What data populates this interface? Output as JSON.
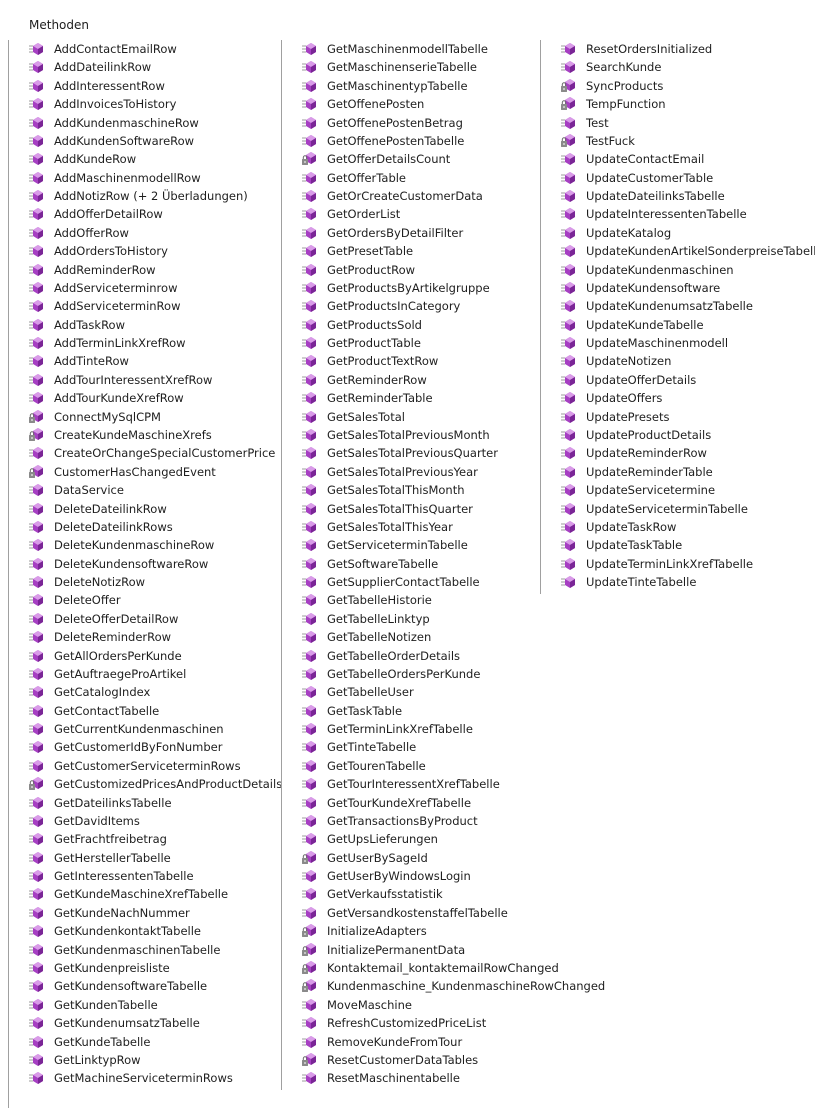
{
  "header": "Methoden",
  "columns": [
    {
      "items": [
        {
          "label": "AddContactEmailRow",
          "icon": "method-icon"
        },
        {
          "label": "AddDateilinkRow",
          "icon": "method-icon"
        },
        {
          "label": "AddInteressentRow",
          "icon": "method-icon"
        },
        {
          "label": "AddInvoicesToHistory",
          "icon": "method-icon"
        },
        {
          "label": "AddKundenmaschineRow",
          "icon": "method-icon"
        },
        {
          "label": "AddKundenSoftwareRow",
          "icon": "method-icon"
        },
        {
          "label": "AddKundeRow",
          "icon": "method-icon"
        },
        {
          "label": "AddMaschinenmodellRow",
          "icon": "method-icon"
        },
        {
          "label": "AddNotizRow (+ 2 Überladungen)",
          "icon": "method-icon"
        },
        {
          "label": "AddOfferDetailRow",
          "icon": "method-icon"
        },
        {
          "label": "AddOfferRow",
          "icon": "method-icon"
        },
        {
          "label": "AddOrdersToHistory",
          "icon": "method-icon"
        },
        {
          "label": "AddReminderRow",
          "icon": "method-icon"
        },
        {
          "label": "AddServiceterminrow",
          "icon": "method-icon"
        },
        {
          "label": "AddServiceterminRow",
          "icon": "method-icon"
        },
        {
          "label": "AddTaskRow",
          "icon": "method-icon"
        },
        {
          "label": "AddTerminLinkXrefRow",
          "icon": "method-icon"
        },
        {
          "label": "AddTinteRow",
          "icon": "method-icon"
        },
        {
          "label": "AddTourInteressentXrefRow",
          "icon": "method-icon"
        },
        {
          "label": "AddTourKundeXrefRow",
          "icon": "method-icon"
        },
        {
          "label": "ConnectMySqlCPM",
          "icon": "private-method-icon"
        },
        {
          "label": "CreateKundeMaschineXrefs",
          "icon": "private-method-icon"
        },
        {
          "label": "CreateOrChangeSpecialCustomerPrice",
          "icon": "method-icon"
        },
        {
          "label": "CustomerHasChangedEvent",
          "icon": "private-method-icon"
        },
        {
          "label": "DataService",
          "icon": "method-icon"
        },
        {
          "label": "DeleteDateilinkRow",
          "icon": "method-icon"
        },
        {
          "label": "DeleteDateilinkRows",
          "icon": "method-icon"
        },
        {
          "label": "DeleteKundenmaschineRow",
          "icon": "method-icon"
        },
        {
          "label": "DeleteKundensoftwareRow",
          "icon": "method-icon"
        },
        {
          "label": "DeleteNotizRow",
          "icon": "method-icon"
        },
        {
          "label": "DeleteOffer",
          "icon": "method-icon"
        },
        {
          "label": "DeleteOfferDetailRow",
          "icon": "method-icon"
        },
        {
          "label": "DeleteReminderRow",
          "icon": "method-icon"
        },
        {
          "label": "GetAllOrdersPerKunde",
          "icon": "method-icon"
        },
        {
          "label": "GetAuftraegeProArtikel",
          "icon": "method-icon"
        },
        {
          "label": "GetCatalogIndex",
          "icon": "method-icon"
        },
        {
          "label": "GetContactTabelle",
          "icon": "method-icon"
        },
        {
          "label": "GetCurrentKundenmaschinen",
          "icon": "method-icon"
        },
        {
          "label": "GetCustomerIdByFonNumber",
          "icon": "method-icon"
        },
        {
          "label": "GetCustomerServiceterminRows",
          "icon": "method-icon"
        },
        {
          "label": "GetCustomizedPricesAndProductDetails",
          "icon": "private-method-icon"
        },
        {
          "label": "GetDateilinksTabelle",
          "icon": "method-icon"
        },
        {
          "label": "GetDavidItems",
          "icon": "method-icon"
        },
        {
          "label": "GetFrachtfreibetrag",
          "icon": "method-icon"
        },
        {
          "label": "GetHerstellerTabelle",
          "icon": "method-icon"
        },
        {
          "label": "GetInteressentenTabelle",
          "icon": "method-icon"
        },
        {
          "label": "GetKundeMaschineXrefTabelle",
          "icon": "method-icon"
        },
        {
          "label": "GetKundeNachNummer",
          "icon": "method-icon"
        },
        {
          "label": "GetKundenkontaktTabelle",
          "icon": "method-icon"
        },
        {
          "label": "GetKundenmaschinenTabelle",
          "icon": "method-icon"
        },
        {
          "label": "GetKundenpreisliste",
          "icon": "method-icon"
        },
        {
          "label": "GetKundensoftwareTabelle",
          "icon": "method-icon"
        },
        {
          "label": "GetKundenTabelle",
          "icon": "method-icon"
        },
        {
          "label": "GetKundenumsatzTabelle",
          "icon": "method-icon"
        },
        {
          "label": "GetKundeTabelle",
          "icon": "method-icon"
        },
        {
          "label": "GetLinktypRow",
          "icon": "method-icon"
        },
        {
          "label": "GetMachineServiceterminRows",
          "icon": "method-icon"
        }
      ]
    },
    {
      "items": [
        {
          "label": "GetMaschinenmodellTabelle",
          "icon": "method-icon"
        },
        {
          "label": "GetMaschinenserieTabelle",
          "icon": "method-icon"
        },
        {
          "label": "GetMaschinentypTabelle",
          "icon": "method-icon"
        },
        {
          "label": "GetOffenePosten",
          "icon": "method-icon"
        },
        {
          "label": "GetOffenePostenBetrag",
          "icon": "method-icon"
        },
        {
          "label": "GetOffenePostenTabelle",
          "icon": "method-icon"
        },
        {
          "label": "GetOfferDetailsCount",
          "icon": "private-method-icon"
        },
        {
          "label": "GetOfferTable",
          "icon": "method-icon"
        },
        {
          "label": "GetOrCreateCustomerData",
          "icon": "method-icon"
        },
        {
          "label": "GetOrderList",
          "icon": "method-icon"
        },
        {
          "label": "GetOrdersByDetailFilter",
          "icon": "method-icon"
        },
        {
          "label": "GetPresetTable",
          "icon": "method-icon"
        },
        {
          "label": "GetProductRow",
          "icon": "method-icon"
        },
        {
          "label": "GetProductsByArtikelgruppe",
          "icon": "method-icon"
        },
        {
          "label": "GetProductsInCategory",
          "icon": "method-icon"
        },
        {
          "label": "GetProductsSold",
          "icon": "method-icon"
        },
        {
          "label": "GetProductTable",
          "icon": "method-icon"
        },
        {
          "label": "GetProductTextRow",
          "icon": "method-icon"
        },
        {
          "label": "GetReminderRow",
          "icon": "method-icon"
        },
        {
          "label": "GetReminderTable",
          "icon": "method-icon"
        },
        {
          "label": "GetSalesTotal",
          "icon": "method-icon"
        },
        {
          "label": "GetSalesTotalPreviousMonth",
          "icon": "method-icon"
        },
        {
          "label": "GetSalesTotalPreviousQuarter",
          "icon": "method-icon"
        },
        {
          "label": "GetSalesTotalPreviousYear",
          "icon": "method-icon"
        },
        {
          "label": "GetSalesTotalThisMonth",
          "icon": "method-icon"
        },
        {
          "label": "GetSalesTotalThisQuarter",
          "icon": "method-icon"
        },
        {
          "label": "GetSalesTotalThisYear",
          "icon": "method-icon"
        },
        {
          "label": "GetServiceterminTabelle",
          "icon": "method-icon"
        },
        {
          "label": "GetSoftwareTabelle",
          "icon": "method-icon"
        },
        {
          "label": "GetSupplierContactTabelle",
          "icon": "method-icon"
        },
        {
          "label": "GetTabelleHistorie",
          "icon": "method-icon"
        },
        {
          "label": "GetTabelleLinktyp",
          "icon": "method-icon"
        },
        {
          "label": "GetTabelleNotizen",
          "icon": "method-icon"
        },
        {
          "label": "GetTabelleOrderDetails",
          "icon": "method-icon"
        },
        {
          "label": "GetTabelleOrdersPerKunde",
          "icon": "method-icon"
        },
        {
          "label": "GetTabelleUser",
          "icon": "method-icon"
        },
        {
          "label": "GetTaskTable",
          "icon": "method-icon"
        },
        {
          "label": "GetTerminLinkXrefTabelle",
          "icon": "method-icon"
        },
        {
          "label": "GetTinteTabelle",
          "icon": "method-icon"
        },
        {
          "label": "GetTourenTabelle",
          "icon": "method-icon"
        },
        {
          "label": "GetTourInteressentXrefTabelle",
          "icon": "method-icon"
        },
        {
          "label": "GetTourKundeXrefTabelle",
          "icon": "method-icon"
        },
        {
          "label": "GetTransactionsByProduct",
          "icon": "method-icon"
        },
        {
          "label": "GetUpsLieferungen",
          "icon": "method-icon"
        },
        {
          "label": "GetUserBySageId",
          "icon": "private-method-icon"
        },
        {
          "label": "GetUserByWindowsLogin",
          "icon": "method-icon"
        },
        {
          "label": "GetVerkaufsstatistik",
          "icon": "method-icon"
        },
        {
          "label": "GetVersandkostenstaffelTabelle",
          "icon": "method-icon"
        },
        {
          "label": "InitializeAdapters",
          "icon": "private-method-icon"
        },
        {
          "label": "InitializePermanentData",
          "icon": "private-method-icon"
        },
        {
          "label": "Kontaktemail_kontaktemailRowChanged",
          "icon": "private-method-icon"
        },
        {
          "label": "Kundenmaschine_KundenmaschineRowChanged",
          "icon": "private-method-icon"
        },
        {
          "label": "MoveMaschine",
          "icon": "method-icon"
        },
        {
          "label": "RefreshCustomizedPriceList",
          "icon": "method-icon"
        },
        {
          "label": "RemoveKundeFromTour",
          "icon": "method-icon"
        },
        {
          "label": "ResetCustomerDataTables",
          "icon": "private-method-icon"
        },
        {
          "label": "ResetMaschinentabelle",
          "icon": "method-icon"
        }
      ]
    },
    {
      "items": [
        {
          "label": "ResetOrdersInitialized",
          "icon": "method-icon"
        },
        {
          "label": "SearchKunde",
          "icon": "method-icon"
        },
        {
          "label": "SyncProducts",
          "icon": "private-method-icon"
        },
        {
          "label": "TempFunction",
          "icon": "private-method-icon"
        },
        {
          "label": "Test",
          "icon": "method-icon"
        },
        {
          "label": "TestFuck",
          "icon": "private-method-icon"
        },
        {
          "label": "UpdateContactEmail",
          "icon": "method-icon"
        },
        {
          "label": "UpdateCustomerTable",
          "icon": "method-icon"
        },
        {
          "label": "UpdateDateilinksTabelle",
          "icon": "method-icon"
        },
        {
          "label": "UpdateInteressentenTabelle",
          "icon": "method-icon"
        },
        {
          "label": "UpdateKatalog",
          "icon": "method-icon"
        },
        {
          "label": "UpdateKundenArtikelSonderpreiseTabelle",
          "icon": "method-icon"
        },
        {
          "label": "UpdateKundenmaschinen",
          "icon": "method-icon"
        },
        {
          "label": "UpdateKundensoftware",
          "icon": "method-icon"
        },
        {
          "label": "UpdateKundenumsatzTabelle",
          "icon": "method-icon"
        },
        {
          "label": "UpdateKundeTabelle",
          "icon": "method-icon"
        },
        {
          "label": "UpdateMaschinenmodell",
          "icon": "method-icon"
        },
        {
          "label": "UpdateNotizen",
          "icon": "method-icon"
        },
        {
          "label": "UpdateOfferDetails",
          "icon": "method-icon"
        },
        {
          "label": "UpdateOffers",
          "icon": "method-icon"
        },
        {
          "label": "UpdatePresets",
          "icon": "method-icon"
        },
        {
          "label": "UpdateProductDetails",
          "icon": "method-icon"
        },
        {
          "label": "UpdateReminderRow",
          "icon": "method-icon"
        },
        {
          "label": "UpdateReminderTable",
          "icon": "method-icon"
        },
        {
          "label": "UpdateServicetermine",
          "icon": "method-icon"
        },
        {
          "label": "UpdateServiceterminTabelle",
          "icon": "method-icon"
        },
        {
          "label": "UpdateTaskRow",
          "icon": "method-icon"
        },
        {
          "label": "UpdateTaskTable",
          "icon": "method-icon"
        },
        {
          "label": "UpdateTerminLinkXrefTabelle",
          "icon": "method-icon"
        },
        {
          "label": "UpdateTinteTabelle",
          "icon": "method-icon"
        }
      ]
    }
  ],
  "colors": {
    "method_purple": "#a63fc2",
    "method_purple_light": "#d99be8",
    "line_gray": "#a0a0a0",
    "text": "#1e1e1e"
  }
}
